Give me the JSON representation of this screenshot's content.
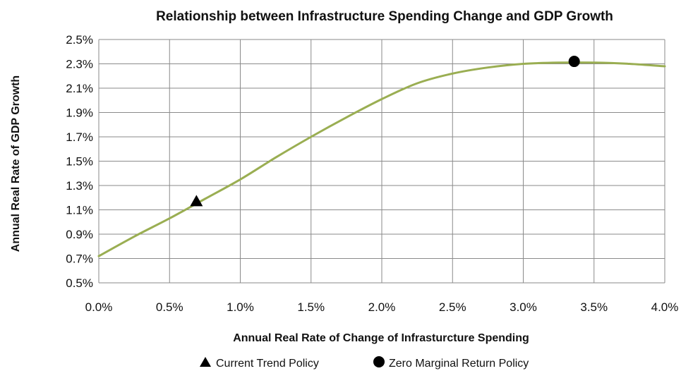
{
  "chart_data": {
    "type": "line",
    "title": "Relationship between Infrastructure Spending Change and GDP Growth",
    "xlabel": "Annual Real Rate of Change of Infrasturcture Spending",
    "ylabel": "Annual Real Rate of GDP Growth",
    "xlim": [
      0.0,
      4.0
    ],
    "ylim": [
      0.5,
      2.5
    ],
    "x_ticks": [
      "0.0%",
      "0.5%",
      "1.0%",
      "1.5%",
      "2.0%",
      "2.5%",
      "3.0%",
      "3.5%",
      "4.0%"
    ],
    "y_ticks": [
      "2.5%",
      "2.3%",
      "2.1%",
      "1.9%",
      "1.7%",
      "1.5%",
      "1.3%",
      "1.1%",
      "0.9%",
      "0.7%",
      "0.5%"
    ],
    "grid": true,
    "line_color": "#9aae52",
    "series": [
      {
        "x": [
          0.0,
          0.25,
          0.5,
          0.75,
          1.0,
          1.25,
          1.5,
          1.75,
          2.0,
          2.25,
          2.5,
          2.75,
          3.0,
          3.25,
          3.5,
          3.75,
          4.0
        ],
        "y": [
          0.72,
          0.88,
          1.03,
          1.19,
          1.35,
          1.53,
          1.7,
          1.86,
          2.01,
          2.14,
          2.22,
          2.27,
          2.3,
          2.31,
          2.31,
          2.3,
          2.28
        ]
      }
    ],
    "markers": [
      {
        "name": "Current Trend Policy",
        "shape": "triangle",
        "x": 0.69,
        "y": 1.17,
        "color": "#000000"
      },
      {
        "name": "Zero Marginal Return Policy",
        "shape": "circle",
        "x": 3.36,
        "y": 2.32,
        "color": "#000000"
      }
    ],
    "legend": {
      "placement": "bottom",
      "items": [
        {
          "label": "Current Trend Policy",
          "symbol": "triangle"
        },
        {
          "label": "Zero Marginal Return Policy",
          "symbol": "circle"
        }
      ]
    }
  }
}
